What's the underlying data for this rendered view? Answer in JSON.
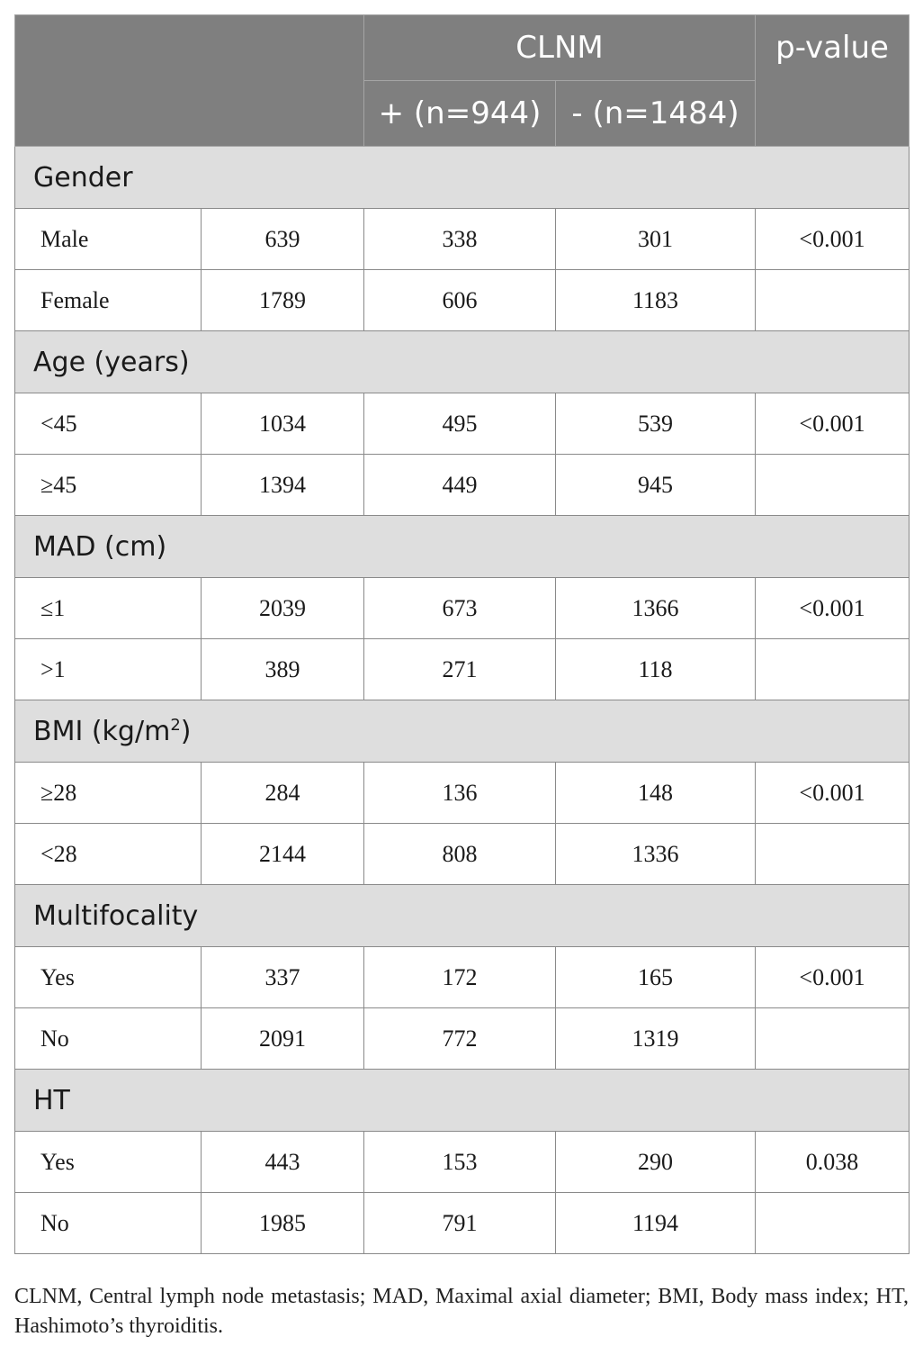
{
  "header": {
    "clnm": "CLNM",
    "p_value": "p-value",
    "pos": "+ (n=944)",
    "neg": "- (n=1484)"
  },
  "groups": [
    {
      "title": "Gender",
      "rows": [
        {
          "label": "Male",
          "total": "639",
          "pos": "338",
          "neg": "301",
          "p": "<0.001"
        },
        {
          "label": "Female",
          "total": "1789",
          "pos": "606",
          "neg": "1183",
          "p": ""
        }
      ]
    },
    {
      "title": "Age (years)",
      "rows": [
        {
          "label": "<45",
          "total": "1034",
          "pos": "495",
          "neg": "539",
          "p": "<0.001"
        },
        {
          "label": "≥45",
          "total": "1394",
          "pos": "449",
          "neg": "945",
          "p": ""
        }
      ]
    },
    {
      "title": "MAD (cm)",
      "rows": [
        {
          "label": "≤1",
          "total": "2039",
          "pos": "673",
          "neg": "1366",
          "p": "<0.001"
        },
        {
          "label": ">1",
          "total": "389",
          "pos": "271",
          "neg": "118",
          "p": ""
        }
      ]
    },
    {
      "title": "BMI (kg/m",
      "title_sup": "2",
      "title_end": ")",
      "rows": [
        {
          "label": "≥28",
          "total": "284",
          "pos": "136",
          "neg": "148",
          "p": "<0.001"
        },
        {
          "label": "<28",
          "total": "2144",
          "pos": "808",
          "neg": "1336",
          "p": ""
        }
      ]
    },
    {
      "title": "Multifocality",
      "rows": [
        {
          "label": "Yes",
          "total": "337",
          "pos": "172",
          "neg": "165",
          "p": "<0.001"
        },
        {
          "label": "No",
          "total": "2091",
          "pos": "772",
          "neg": "1319",
          "p": ""
        }
      ]
    },
    {
      "title": "HT",
      "rows": [
        {
          "label": "Yes",
          "total": "443",
          "pos": "153",
          "neg": "290",
          "p": "0.038"
        },
        {
          "label": "No",
          "total": "1985",
          "pos": "791",
          "neg": "1194",
          "p": ""
        }
      ]
    }
  ],
  "footnote": "CLNM, Central lymph node metastasis; MAD, Maximal axial diameter; BMI, Body mass index; HT, Hashimoto’s thyroiditis."
}
